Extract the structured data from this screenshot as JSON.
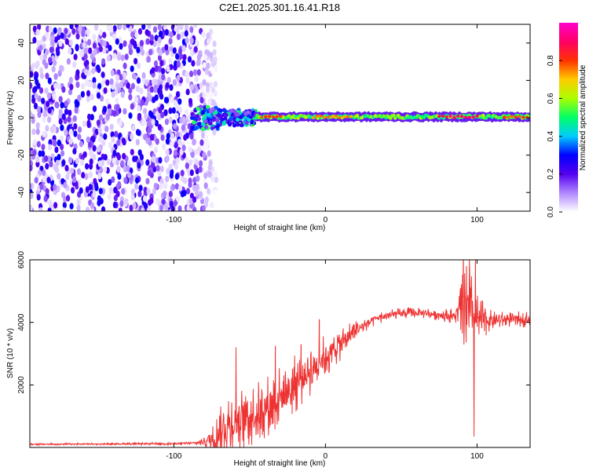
{
  "title": "C2E1.2025.301.16.41.R18",
  "colors": {
    "signal": "#ee3333",
    "axis": "#000000",
    "background": "#ffffff"
  },
  "chart_data": [
    {
      "type": "heatmap",
      "xlabel": "Height of straight line (km)",
      "ylabel": "Frequency (Hz)",
      "xlim": [
        -195,
        135
      ],
      "ylim": [
        -50,
        50
      ],
      "xticks": [
        -100,
        0,
        100
      ],
      "xtick_labels": [
        "-100",
        "0",
        "100"
      ],
      "yticks": [
        -40,
        -20,
        0,
        20,
        40
      ],
      "ytick_labels": [
        "-40",
        "-20",
        "0",
        "20",
        "40"
      ],
      "colorbar": {
        "label": "Normalized spectral amplitude",
        "range": [
          0,
          1
        ],
        "ticks": [
          0.0,
          0.2,
          0.4,
          0.6,
          0.8
        ],
        "tick_labels": [
          "0.0",
          "0.2",
          "0.4",
          "0.6",
          "0.8"
        ],
        "colormap": [
          "#ffffff",
          "#b088ff",
          "#5500ee",
          "#0000ff",
          "#00ccff",
          "#00ff66",
          "#aaff00",
          "#ffcc00",
          "#ff3300",
          "#ff0066",
          "#ff00cc"
        ]
      },
      "regions": [
        {
          "name": "noise",
          "x_range": [
            -195,
            -72
          ],
          "amplitude": [
            0.02,
            0.3
          ]
        },
        {
          "name": "onset burst",
          "x_range": [
            -88,
            -46
          ],
          "freq_center": 0,
          "freq_halfwidth": 6,
          "amplitude": [
            0.35,
            0.55
          ]
        },
        {
          "name": "carrier line",
          "x_range": [
            -46,
            135
          ],
          "freq_center": 0.5,
          "freq_halfwidth": 2.5,
          "amplitude": [
            0.45,
            0.75
          ]
        },
        {
          "name": "peak segment 1",
          "x_range": [
            -42,
            -28
          ],
          "amplitude": 0.85
        },
        {
          "name": "peak segment 2",
          "x_range": [
            -8,
            18
          ],
          "amplitude": 0.8
        },
        {
          "name": "peak segment 3",
          "x_range": [
            75,
            100
          ],
          "amplitude": 0.95
        },
        {
          "name": "peak segment 4",
          "x_range": [
            118,
            135
          ],
          "amplitude": 0.85
        }
      ]
    },
    {
      "type": "line",
      "xlabel": "Height of straight line (km)",
      "ylabel": "SNR (10 * v/v)",
      "xlim": [
        -195,
        135
      ],
      "ylim": [
        0,
        6000
      ],
      "xticks": [
        -100,
        0,
        100
      ],
      "xtick_labels": [
        "-100",
        "0",
        "100"
      ],
      "yticks": [
        2000,
        4000,
        6000
      ],
      "ytick_labels": [
        "2000",
        "4000",
        "6000"
      ],
      "series": [
        {
          "name": "SNR",
          "x": [
            -195,
            -150,
            -100,
            -85,
            -75,
            -65,
            -55,
            -45,
            -35,
            -25,
            -15,
            -5,
            5,
            15,
            25,
            35,
            45,
            55,
            65,
            75,
            85,
            90,
            95,
            100,
            110,
            120,
            135
          ],
          "values": [
            100,
            110,
            120,
            140,
            250,
            700,
            900,
            1100,
            1450,
            1800,
            2250,
            2700,
            3100,
            3550,
            3900,
            4150,
            4250,
            4300,
            4300,
            4250,
            4200,
            4400,
            4300,
            4100,
            4050,
            4100,
            4100
          ],
          "noise_amplitude": [
            30,
            30,
            40,
            60,
            400,
            1100,
            1100,
            1000,
            1000,
            1000,
            900,
            800,
            650,
            450,
            250,
            200,
            180,
            180,
            180,
            200,
            250,
            1100,
            1500,
            800,
            300,
            250,
            250
          ],
          "spikes": [
            {
              "x": -59,
              "value": 3200
            },
            {
              "x": -33,
              "value": 3250
            },
            {
              "x": -16,
              "value": 3300
            },
            {
              "x": -4,
              "value": 4100
            },
            {
              "x": 91,
              "value": 6000
            },
            {
              "x": 93,
              "value": 5800
            },
            {
              "x": 95,
              "value": 6000
            },
            {
              "x": 98,
              "value": 350
            },
            {
              "x": 99,
              "value": 6000
            }
          ]
        }
      ]
    }
  ]
}
